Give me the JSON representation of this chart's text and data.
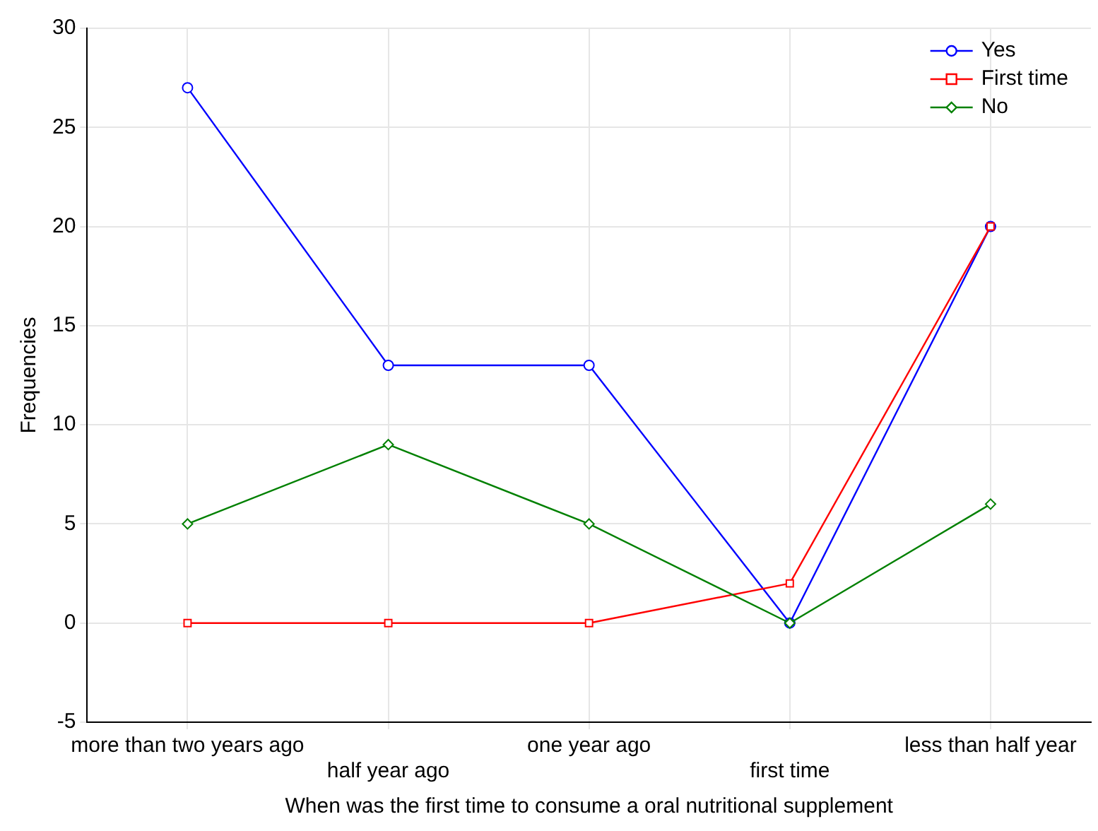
{
  "chart_data": {
    "type": "line",
    "xlabel": "When was the first time to consume a oral nutritional supplement",
    "ylabel": "Frequencies",
    "categories": [
      "more than two years ago",
      "half year ago",
      "one year ago",
      "first time",
      "less than half year"
    ],
    "series": [
      {
        "name": "Yes",
        "color": "#0000ff",
        "marker": "circle",
        "values": [
          27,
          13,
          13,
          0,
          20
        ]
      },
      {
        "name": "First time",
        "color": "#ff0000",
        "marker": "square",
        "values": [
          0,
          0,
          0,
          2,
          20
        ]
      },
      {
        "name": "No",
        "color": "#008000",
        "marker": "diamond",
        "values": [
          5,
          9,
          5,
          0,
          6
        ]
      }
    ],
    "ylim": [
      -5,
      30
    ],
    "yticks": [
      -5,
      0,
      5,
      10,
      15,
      20,
      25,
      30
    ],
    "grid": true,
    "legend": "top right",
    "line_style": "solid"
  }
}
